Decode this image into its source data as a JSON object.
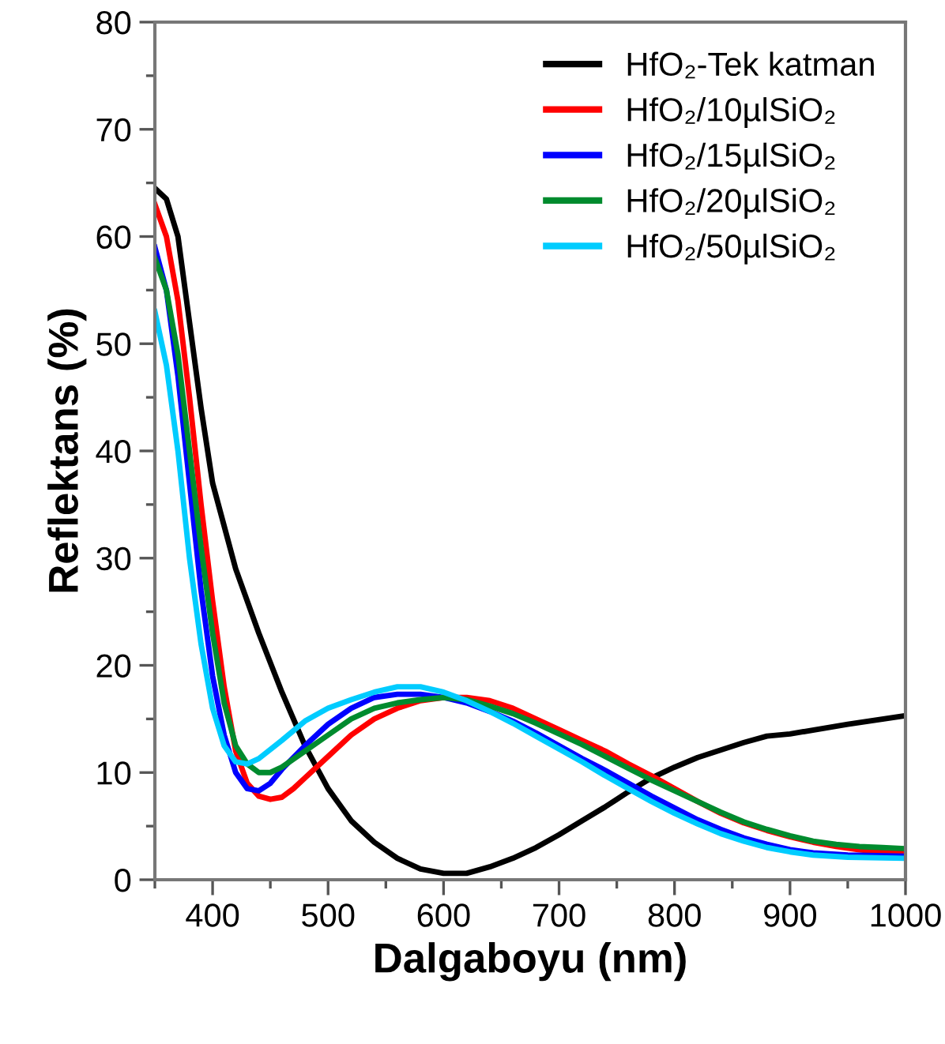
{
  "chart_data": {
    "type": "line",
    "xlabel": "Dalgaboyu (nm)",
    "ylabel": "Reflektans (%)",
    "xlim": [
      350,
      1000
    ],
    "ylim": [
      0,
      80
    ],
    "xticks": [
      400,
      500,
      600,
      700,
      800,
      900,
      1000
    ],
    "yticks": [
      0,
      10,
      20,
      30,
      40,
      50,
      60,
      70,
      80
    ],
    "grid": false,
    "legend": "top right",
    "marker": "none",
    "line_style": "solid",
    "series": [
      {
        "name": "HfO₂-Tek katman",
        "color": "#000000",
        "x": [
          350,
          360,
          370,
          380,
          390,
          400,
          420,
          440,
          460,
          480,
          500,
          520,
          540,
          560,
          580,
          600,
          620,
          640,
          660,
          680,
          700,
          720,
          740,
          760,
          780,
          800,
          820,
          840,
          860,
          880,
          900,
          950,
          1000
        ],
        "values": [
          64.5,
          63.5,
          60,
          52,
          44,
          37,
          29,
          23,
          17.5,
          12.5,
          8.5,
          5.5,
          3.5,
          2,
          1,
          0.6,
          0.6,
          1.2,
          2,
          3,
          4.2,
          5.5,
          6.8,
          8.2,
          9.5,
          10.5,
          11.4,
          12.1,
          12.8,
          13.4,
          13.6,
          14.5,
          15.3
        ]
      },
      {
        "name": "HfO₂/10µlSiO₂",
        "color": "#ff0000",
        "x": [
          350,
          360,
          370,
          380,
          390,
          400,
          410,
          420,
          430,
          440,
          450,
          460,
          470,
          480,
          500,
          520,
          540,
          560,
          580,
          600,
          620,
          640,
          660,
          680,
          700,
          720,
          740,
          760,
          780,
          800,
          820,
          840,
          860,
          880,
          900,
          920,
          940,
          960,
          980,
          1000
        ],
        "values": [
          63,
          60,
          54,
          45,
          35,
          26,
          18,
          12,
          9,
          7.8,
          7.5,
          7.7,
          8.5,
          9.5,
          11.5,
          13.5,
          15,
          16,
          16.7,
          17,
          17,
          16.7,
          16,
          15,
          14,
          13,
          12,
          10.8,
          9.7,
          8.5,
          7.3,
          6.2,
          5.3,
          4.6,
          4,
          3.5,
          3.1,
          2.8,
          2.6,
          2.5
        ]
      },
      {
        "name": "HfO₂/15µlSiO₂",
        "color": "#0000ff",
        "x": [
          350,
          360,
          370,
          380,
          390,
          400,
          410,
          420,
          430,
          440,
          450,
          460,
          480,
          500,
          520,
          540,
          560,
          580,
          600,
          620,
          640,
          660,
          680,
          700,
          720,
          740,
          760,
          780,
          800,
          820,
          840,
          860,
          880,
          900,
          920,
          950,
          1000
        ],
        "values": [
          59,
          55,
          47,
          37,
          27,
          19,
          13.5,
          10,
          8.5,
          8.3,
          9,
          10.3,
          12.5,
          14.5,
          16,
          17,
          17.3,
          17.3,
          17,
          16.5,
          15.7,
          14.8,
          13.7,
          12.5,
          11.3,
          10.2,
          9,
          7.8,
          6.7,
          5.6,
          4.7,
          3.9,
          3.3,
          2.8,
          2.5,
          2.3,
          2.2
        ]
      },
      {
        "name": "HfO₂/20µlSiO₂",
        "color": "#008b2e",
        "x": [
          350,
          360,
          370,
          380,
          390,
          400,
          410,
          420,
          430,
          440,
          450,
          460,
          480,
          500,
          520,
          540,
          560,
          580,
          600,
          620,
          640,
          660,
          680,
          700,
          720,
          740,
          760,
          780,
          800,
          820,
          840,
          860,
          880,
          900,
          920,
          940,
          960,
          980,
          1000
        ],
        "values": [
          58,
          55,
          49,
          40,
          31,
          23,
          16.5,
          12.5,
          10.8,
          10,
          10,
          10.5,
          12,
          13.5,
          15,
          16,
          16.5,
          16.8,
          17,
          16.8,
          16.2,
          15.5,
          14.6,
          13.6,
          12.6,
          11.5,
          10.4,
          9.3,
          8.3,
          7.3,
          6.3,
          5.4,
          4.7,
          4.1,
          3.6,
          3.3,
          3.1,
          3,
          2.9
        ]
      },
      {
        "name": "HfO₂/50µlSiO₂",
        "color": "#00ccff",
        "x": [
          350,
          360,
          370,
          380,
          390,
          400,
          410,
          420,
          430,
          440,
          460,
          480,
          500,
          520,
          540,
          560,
          580,
          600,
          620,
          640,
          660,
          680,
          700,
          720,
          740,
          760,
          780,
          800,
          820,
          840,
          860,
          880,
          900,
          920,
          950,
          1000
        ],
        "values": [
          53,
          48,
          40,
          30,
          22,
          16,
          12.5,
          11,
          10.8,
          11.3,
          13,
          14.8,
          16,
          16.8,
          17.5,
          18,
          18,
          17.5,
          16.7,
          15.7,
          14.6,
          13.4,
          12.2,
          11,
          9.7,
          8.5,
          7.3,
          6.2,
          5.2,
          4.3,
          3.6,
          3,
          2.6,
          2.3,
          2.1,
          2.0
        ]
      }
    ]
  }
}
